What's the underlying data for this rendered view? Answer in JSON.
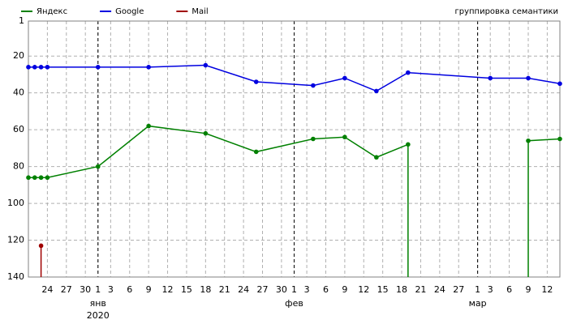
{
  "chart_data": {
    "type": "line",
    "annotation": "группировка семантики",
    "series": [
      {
        "name": "Яндекс",
        "color": "#008000",
        "x": [
          -10,
          -9,
          -8,
          -7,
          1,
          9,
          18,
          26,
          35,
          40,
          45,
          50,
          50,
          null,
          69,
          69,
          74
        ],
        "values": [
          86,
          86,
          86,
          86,
          80,
          58,
          62,
          72,
          65,
          64,
          75,
          68,
          140,
          null,
          140,
          66,
          65
        ]
      },
      {
        "name": "Google",
        "color": "#0000e0",
        "x": [
          -10,
          -9,
          -8,
          -7,
          1,
          9,
          18,
          26,
          35,
          40,
          45,
          50,
          63,
          69,
          74
        ],
        "values": [
          26,
          26,
          26,
          26,
          26,
          26,
          25,
          34,
          36,
          32,
          39,
          29,
          32,
          32,
          35
        ]
      },
      {
        "name": "Mail",
        "color": "#a00000",
        "x": [
          -8,
          -8
        ],
        "values": [
          123,
          140
        ]
      }
    ],
    "xlim": [
      -10,
      74
    ],
    "xticks": [
      {
        "value": -7,
        "label": "24"
      },
      {
        "value": -4,
        "label": "27"
      },
      {
        "value": -1,
        "label": "30"
      },
      1,
      3,
      6,
      9,
      12,
      15,
      18,
      21,
      24,
      27,
      30,
      {
        "value": 32,
        "label": "1"
      },
      {
        "value": 34,
        "label": "3"
      },
      {
        "value": 37,
        "label": "6"
      },
      {
        "value": 40,
        "label": "9"
      },
      {
        "value": 43,
        "label": "12"
      },
      {
        "value": 46,
        "label": "15"
      },
      {
        "value": 49,
        "label": "18"
      },
      {
        "value": 52,
        "label": "21"
      },
      {
        "value": 55,
        "label": "24"
      },
      {
        "value": 58,
        "label": "27"
      },
      {
        "value": 61,
        "label": "1"
      },
      {
        "value": 63,
        "label": "3"
      },
      {
        "value": 66,
        "label": "6"
      },
      {
        "value": 69,
        "label": "9"
      },
      {
        "value": 72,
        "label": "12"
      }
    ],
    "month_labels": [
      {
        "value": 1,
        "label": "янв"
      },
      {
        "value": 32,
        "label": "фев"
      },
      {
        "value": 61,
        "label": "мар"
      }
    ],
    "year_label": {
      "value": 1,
      "label": "2020"
    },
    "ylim": [
      140,
      1
    ],
    "yticks": [
      1,
      20,
      40,
      60,
      80,
      100,
      120,
      140
    ],
    "grid": true
  }
}
